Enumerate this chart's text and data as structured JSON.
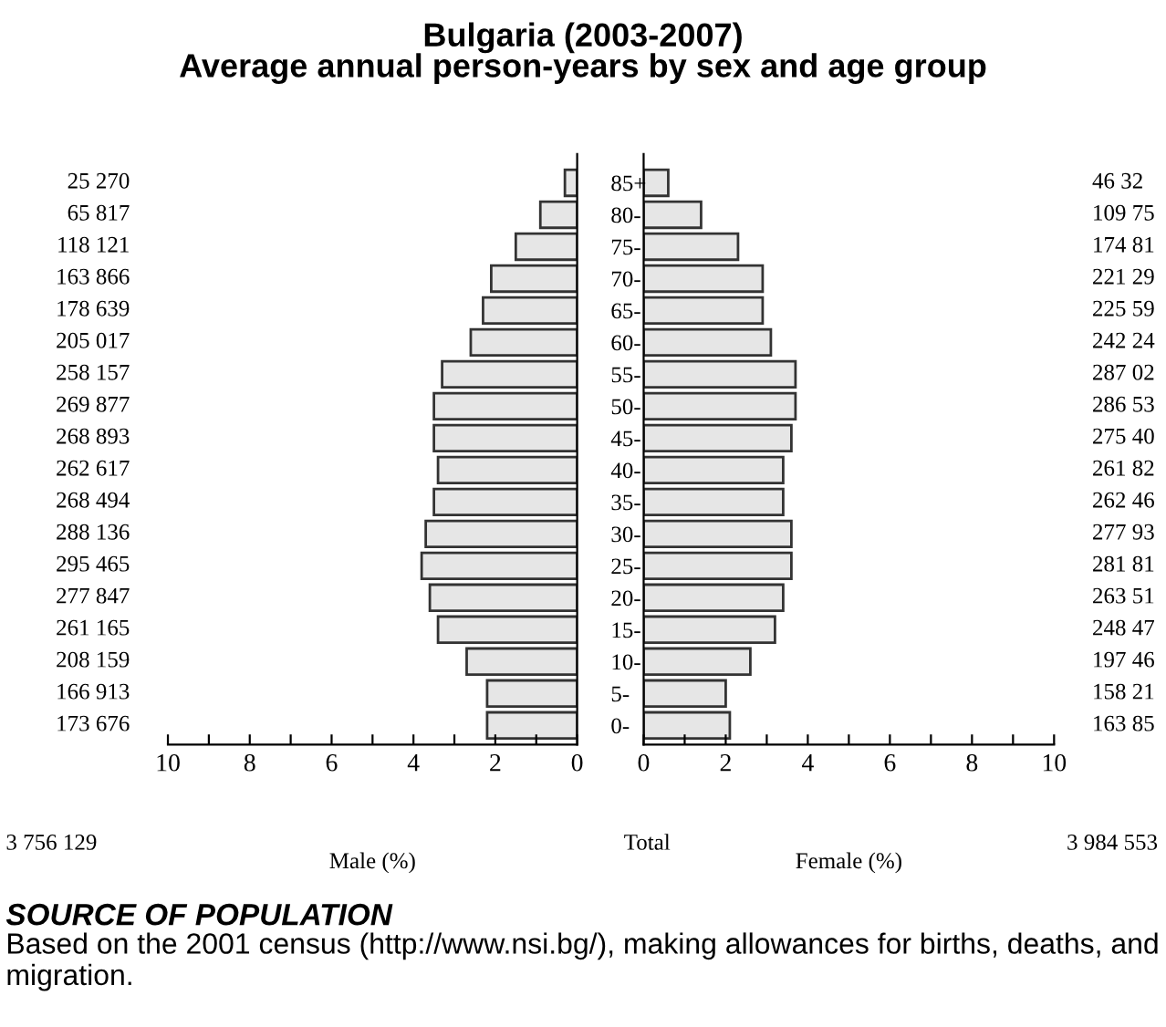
{
  "chart_data": [
    {
      "type": "bar",
      "orientation": "horizontal",
      "title": "Bulgaria (2003-2007)",
      "subtitle": "Average annual person-years by sex and age group",
      "xlabel": "Male (%)",
      "categories": [
        null,
        null,
        null,
        null,
        null,
        null,
        null,
        null,
        null,
        null,
        null,
        null,
        null,
        null,
        null,
        null,
        null,
        null
      ],
      "values": [
        0.3,
        0.9,
        1.5,
        2.1,
        2.3,
        2.6,
        3.3,
        3.5,
        3.5,
        3.4,
        3.5,
        3.7,
        3.8,
        3.6,
        3.4,
        2.7,
        2.2,
        2.2
      ],
      "color": "#e6e6e6",
      "xlim": [
        10,
        0
      ],
      "xticks": [
        10,
        {
          "value": 9,
          "label": null
        },
        8,
        {
          "value": 7,
          "label": null
        },
        6,
        {
          "value": 5,
          "label": null
        },
        4,
        {
          "value": 3,
          "label": null
        },
        2,
        {
          "value": 1,
          "label": null
        },
        0
      ],
      "grid": false,
      "legend": false,
      "annotations": [
        "25 270",
        "65 817",
        "118 121",
        "163 866",
        "178 639",
        "205 017",
        "258 157",
        "269 877",
        "268 893",
        "262 617",
        "268 494",
        "288 136",
        "295 465",
        "277 847",
        "261 165",
        "208 159",
        "166 913",
        "173 676",
        "3 756 129",
        "SOURCE OF POPULATION",
        "Based on the 2001 census (http://www.nsi.bg/), making allowances for births, deaths, and migration."
      ]
    },
    {
      "type": "bar",
      "orientation": "horizontal",
      "xlabel": "Female (%)",
      "categories": [
        "85+",
        "80-",
        "75-",
        "70-",
        "65-",
        "60-",
        "55-",
        "50-",
        "45-",
        "40-",
        "35-",
        "30-",
        "25-",
        "20-",
        "15-",
        "10-",
        "5-",
        "0-"
      ],
      "values": [
        0.6,
        1.4,
        2.3,
        2.9,
        2.9,
        3.1,
        3.7,
        3.7,
        3.6,
        3.4,
        3.4,
        3.6,
        3.6,
        3.4,
        3.2,
        2.6,
        2.0,
        2.1
      ],
      "color": "#e6e6e6",
      "xlim": [
        0,
        10
      ],
      "xticks": [
        0,
        {
          "value": 1,
          "label": null
        },
        2,
        {
          "value": 3,
          "label": null
        },
        4,
        {
          "value": 5,
          "label": null
        },
        6,
        {
          "value": 7,
          "label": null
        },
        8,
        {
          "value": 9,
          "label": null
        },
        10
      ],
      "grid": false,
      "legend": false,
      "annotations": [
        "46 32",
        "109 75",
        "174 81",
        "221 29",
        "225 59",
        "242 24",
        "287 02",
        "286 53",
        "275 40",
        "261 82",
        "262 46",
        "277 93",
        "281 81",
        "263 51",
        "248 47",
        "197 46",
        "158 21",
        "163 85",
        "Total",
        "3 984 553"
      ]
    }
  ]
}
